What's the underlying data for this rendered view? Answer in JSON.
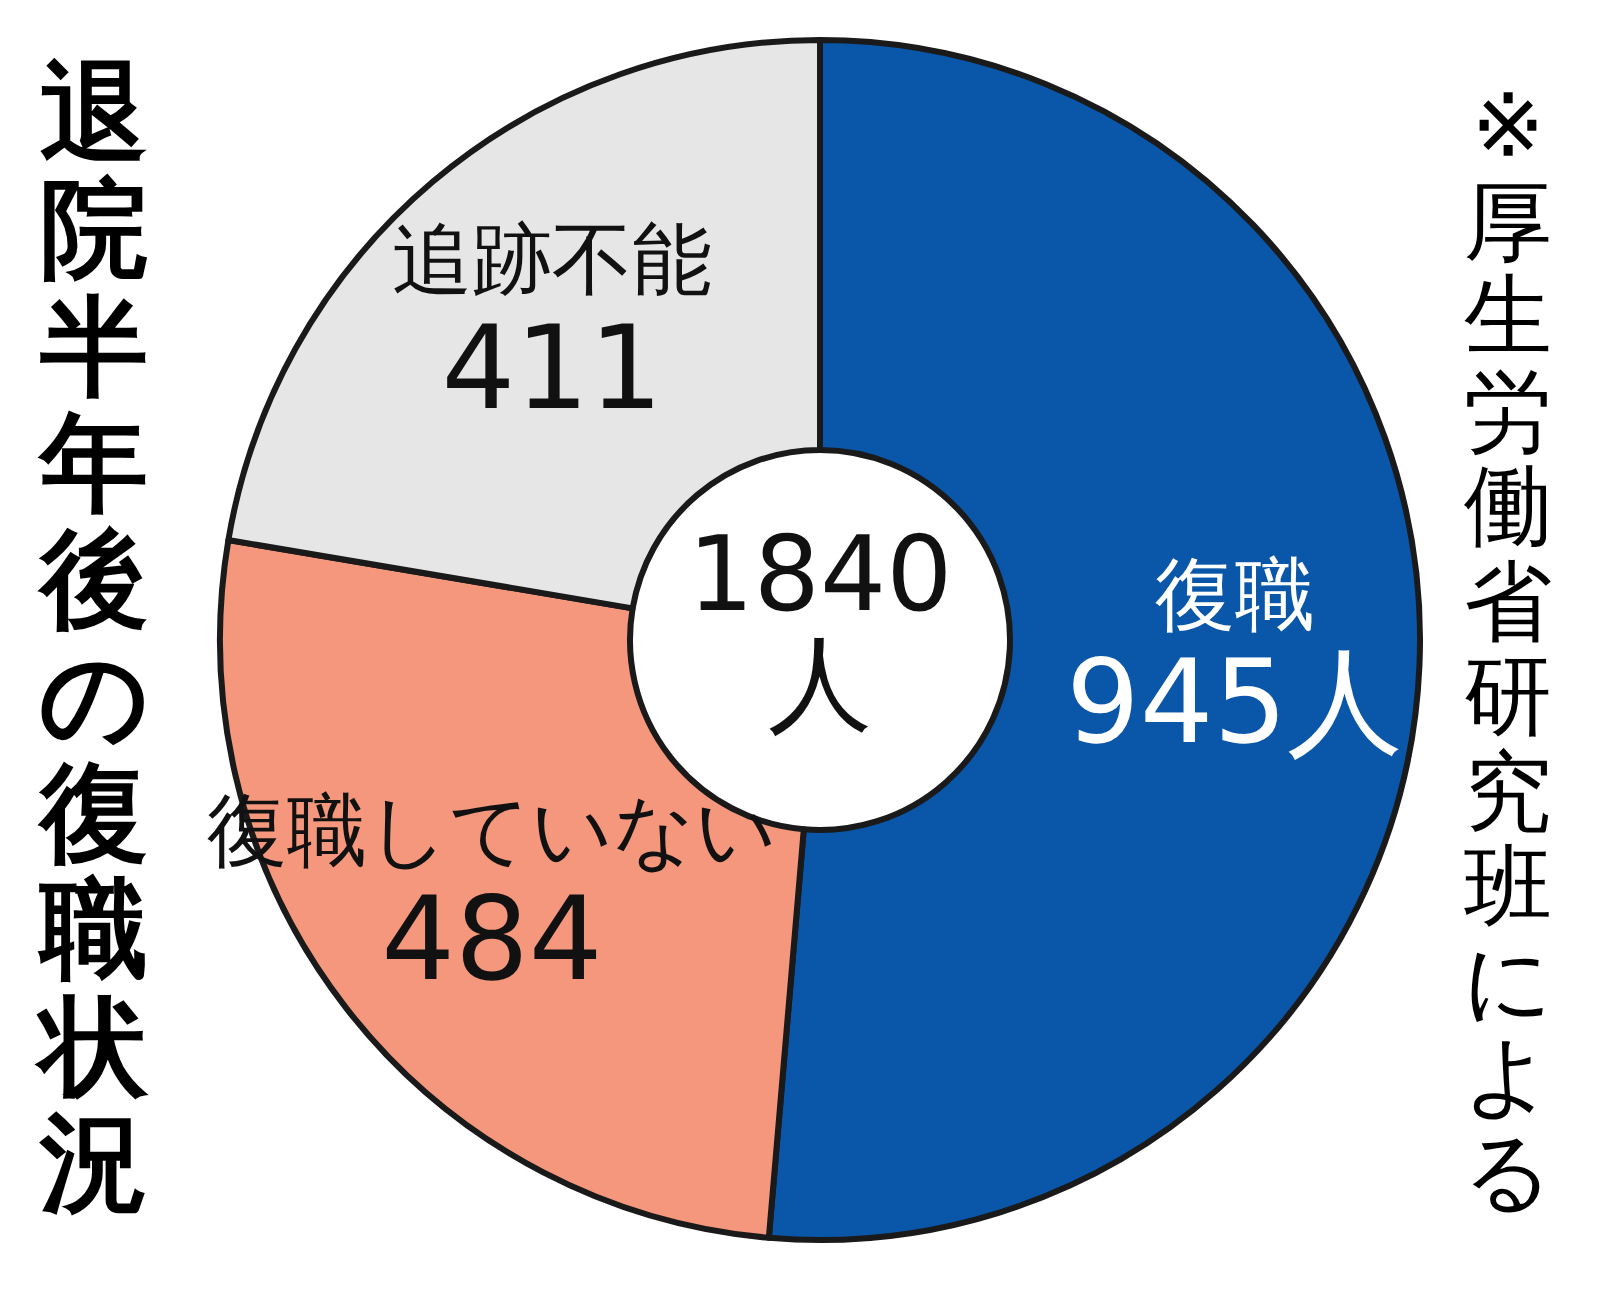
{
  "chart_data": {
    "type": "donut",
    "title": "退院半年後の復職状況",
    "categories": [
      "復職",
      "復職していない",
      "追跡不能"
    ],
    "values": [
      945,
      484,
      411
    ],
    "value_labels": [
      "945人",
      "484",
      "411"
    ],
    "colors": [
      "#0a56a8",
      "#f4977c",
      "#e6e6e6"
    ],
    "annotations": [
      "1840人",
      "※厚生労働省研究班による"
    ]
  }
}
